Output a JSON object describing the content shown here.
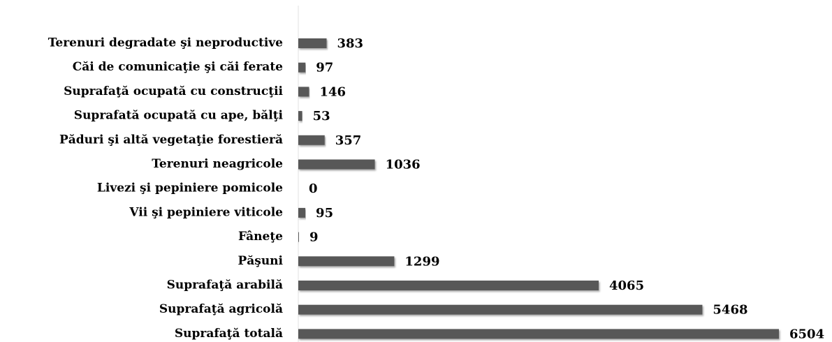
{
  "chart_data": {
    "type": "barh",
    "categories": [
      "Terenuri degradate şi neproductive",
      "Căi de comunicaţie şi căi ferate",
      "Suprafaţă ocupată cu construcţii",
      "Suprafată ocupată cu ape, bălţi",
      "Păduri şi altă vegetaţie forestieră",
      "Terenuri neagricole",
      "Livezi şi pepiniere pomicole",
      "Vii şi pepiniere viticole",
      "Fâneţe",
      "Păşuni",
      "Suprafaţă arabilă",
      "Suprafaţă agricolă",
      "Suprafaţă totală"
    ],
    "values": [
      383,
      97,
      146,
      53,
      357,
      1036,
      0,
      95,
      9,
      1299,
      4065,
      5468,
      6504
    ],
    "color": "#595959"
  }
}
